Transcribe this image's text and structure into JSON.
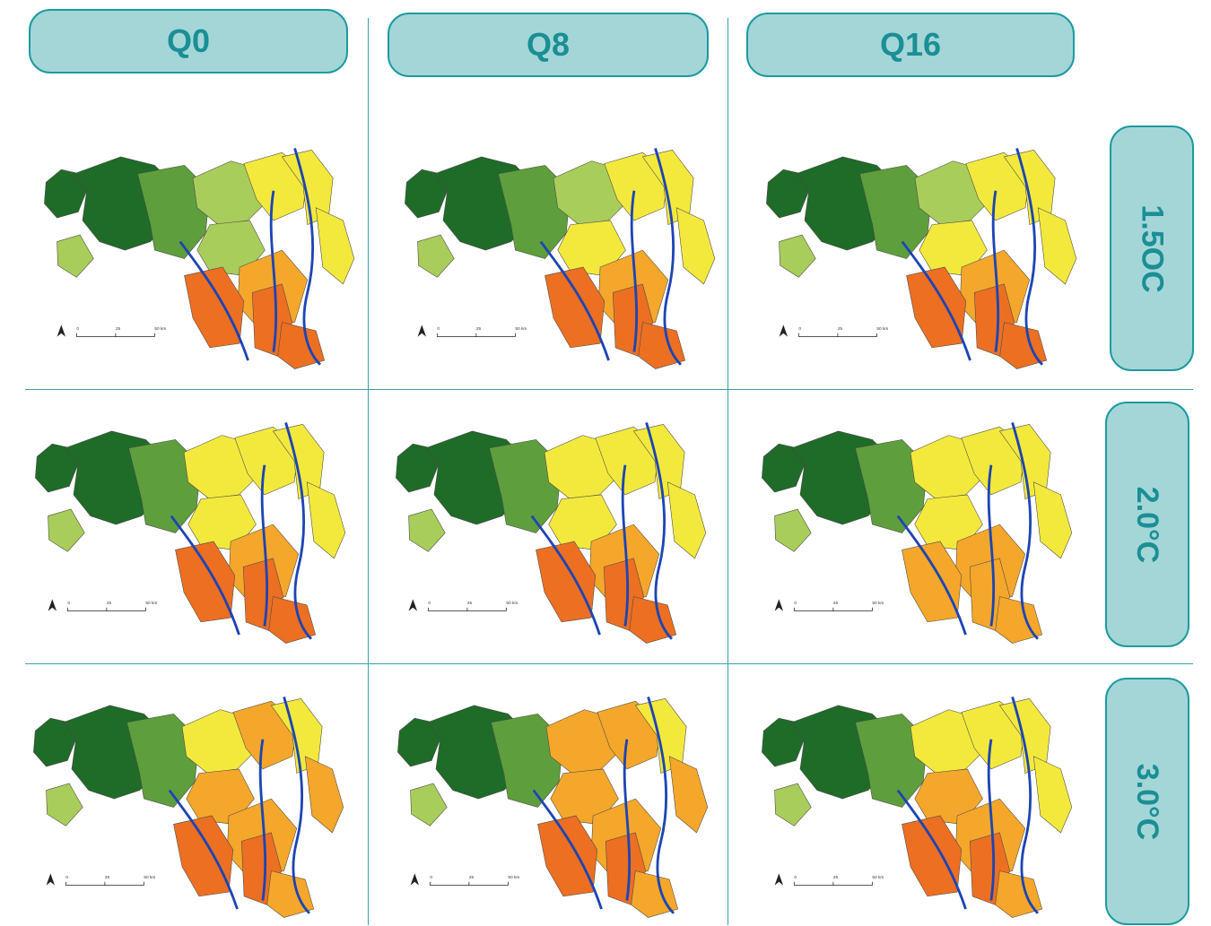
{
  "columns": [
    {
      "label": "Q0"
    },
    {
      "label": "Q8"
    },
    {
      "label": "Q16"
    }
  ],
  "rows": [
    {
      "label": "1.5OC"
    },
    {
      "label": "2.0°C"
    },
    {
      "label": "3.0°C"
    }
  ],
  "scalebar": {
    "tick0": "0",
    "tick1": "25",
    "tick2": "50 km",
    "north": "N"
  },
  "colors": {
    "pill_fill": "#a4d6d8",
    "pill_border": "#1c9aa0",
    "pill_text": "#1a8f95",
    "divider": "#3aa3a8",
    "river": "#1d45b4",
    "dark_green": "#1f6b28",
    "mid_green": "#5f9e3c",
    "light_green": "#a9cd5a",
    "yellow": "#f3e93c",
    "orange": "#f4a72a",
    "dark_orange": "#ec6f22",
    "red": "#e63a20"
  },
  "maps": [
    {
      "row": "1.5OC",
      "col": "Q0",
      "palette": [
        1,
        1,
        2,
        3,
        3,
        4,
        3,
        4,
        4,
        5,
        6,
        6,
        6
      ]
    },
    {
      "row": "1.5OC",
      "col": "Q8",
      "palette": [
        1,
        1,
        2,
        3,
        3,
        4,
        4,
        4,
        4,
        5,
        6,
        6,
        6
      ]
    },
    {
      "row": "1.5OC",
      "col": "Q16",
      "palette": [
        1,
        1,
        2,
        3,
        3,
        4,
        4,
        4,
        4,
        5,
        6,
        6,
        6
      ]
    },
    {
      "row": "2.0°C",
      "col": "Q0",
      "palette": [
        1,
        1,
        2,
        3,
        4,
        4,
        4,
        4,
        4,
        5,
        6,
        6,
        6
      ]
    },
    {
      "row": "2.0°C",
      "col": "Q8",
      "palette": [
        1,
        1,
        2,
        3,
        4,
        4,
        4,
        4,
        4,
        5,
        6,
        6,
        6
      ]
    },
    {
      "row": "2.0°C",
      "col": "Q16",
      "palette": [
        1,
        1,
        2,
        3,
        4,
        4,
        4,
        4,
        4,
        5,
        5,
        5,
        5
      ]
    },
    {
      "row": "3.0°C",
      "col": "Q0",
      "palette": [
        1,
        1,
        2,
        3,
        4,
        5,
        5,
        4,
        5,
        5,
        6,
        6,
        5
      ]
    },
    {
      "row": "3.0°C",
      "col": "Q8",
      "palette": [
        1,
        1,
        2,
        3,
        5,
        5,
        5,
        4,
        5,
        5,
        6,
        6,
        5
      ]
    },
    {
      "row": "3.0°C",
      "col": "Q16",
      "palette": [
        1,
        1,
        2,
        3,
        4,
        4,
        5,
        4,
        4,
        5,
        6,
        6,
        5
      ]
    }
  ]
}
